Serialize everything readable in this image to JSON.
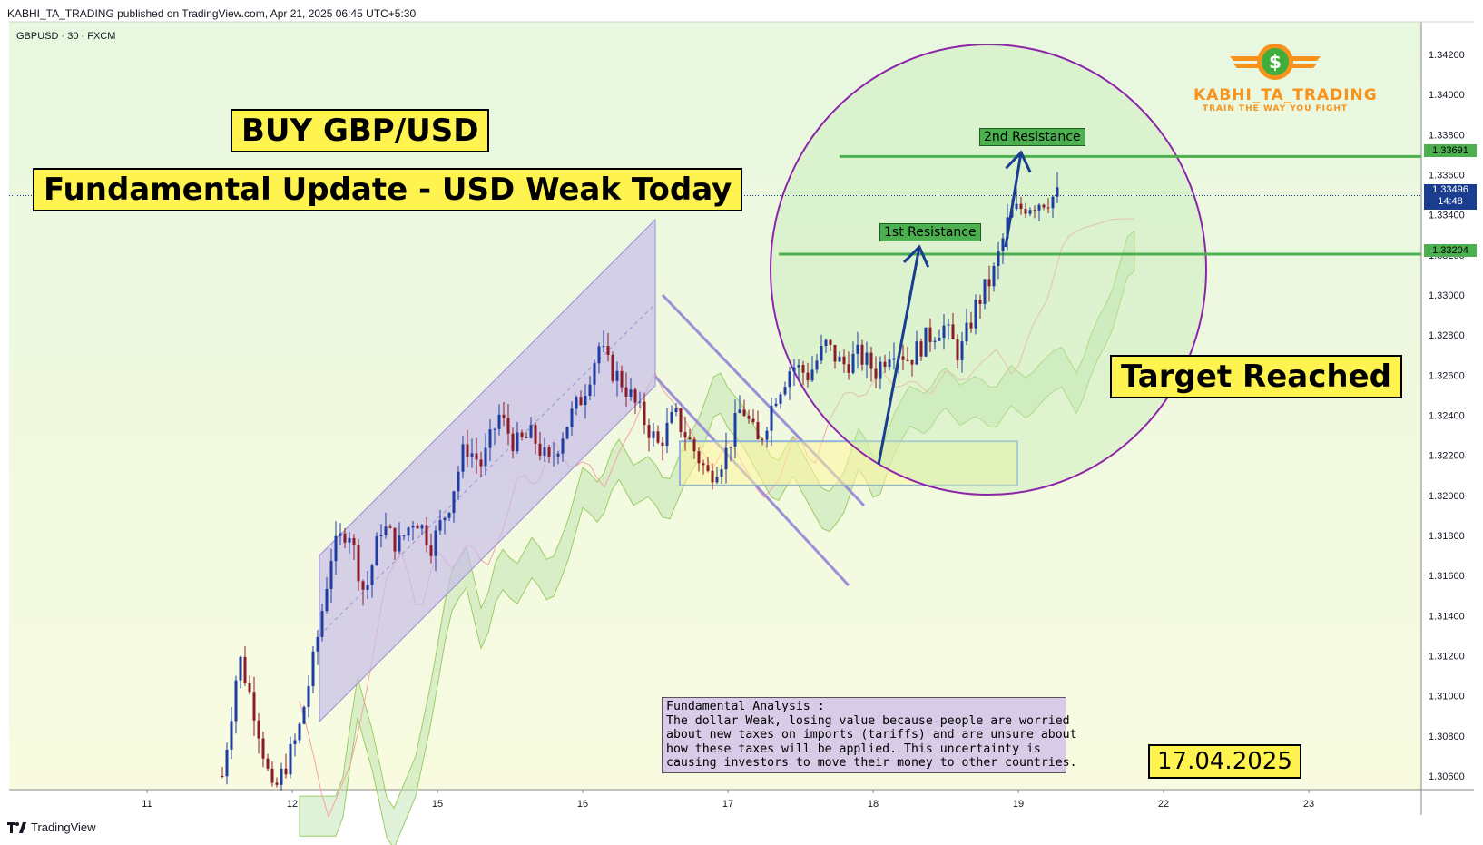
{
  "header": {
    "published": "KABHI_TA_TRADING published on TradingView.com, Apr 21, 2025 06:45 UTC+5:30"
  },
  "symbol_line": "GBPUSD · 30 · FXCM",
  "labels": {
    "buy": "BUY GBP/USD",
    "fundamental": "Fundamental Update -  USD Weak Today",
    "target": "Target Reached",
    "date": "17.04.2025",
    "res1": "1st Resistance",
    "res2": "2nd Resistance"
  },
  "note": {
    "lines": [
      "Fundamental Analysis :",
      "The dollar Weak, losing value because people are worried",
      "about new taxes on imports (tariffs) and are unsure about",
      "how these taxes will be applied. This uncertainty is",
      "causing investors to move their money to other countries."
    ]
  },
  "logo": {
    "name": "KABHI_TA_TRADING",
    "tagline": "TRAIN THE WAY YOU FIGHT",
    "symbol": "$"
  },
  "price_tags": {
    "res2": "1.33691",
    "current": "1.33496",
    "countdown": "14:48",
    "res1": "1.33204"
  },
  "footer": {
    "brand": "TradingView"
  },
  "colors": {
    "background_top": "#e8f7e0",
    "background_bottom": "#f8fbe0",
    "up_candle": "#1f3ca0",
    "down_candle": "#8b1a2a",
    "resistance": "#4caf50",
    "channel": "#9c8fd6",
    "circle": "#8e24aa",
    "arrow": "#1a3d8f",
    "zone": "#fff59d"
  },
  "chart_data": {
    "type": "candlestick",
    "symbol": "GBPUSD",
    "timeframe": "30",
    "x_ticks": [
      "11",
      "12",
      "15",
      "16",
      "17",
      "18",
      "19",
      "22",
      "23"
    ],
    "y_ticks": [
      "1.34200",
      "1.34000",
      "1.33800",
      "1.33600",
      "1.33400",
      "1.33200",
      "1.33000",
      "1.32800",
      "1.32600",
      "1.32400",
      "1.32200",
      "1.32000",
      "1.31800",
      "1.31600",
      "1.31400",
      "1.31200",
      "1.31000",
      "1.30800",
      "1.30600"
    ],
    "ylim": [
      1.3048,
      1.3428
    ],
    "resistance_levels": [
      1.33691,
      1.33204
    ],
    "last_price": 1.33496,
    "demand_zone": [
      1.3205,
      1.3227
    ],
    "price_path": [
      [
        0.0,
        1.306
      ],
      [
        0.02,
        1.312
      ],
      [
        0.04,
        1.309
      ],
      [
        0.06,
        1.305
      ],
      [
        0.09,
        1.308
      ],
      [
        0.11,
        1.312
      ],
      [
        0.13,
        1.317
      ],
      [
        0.15,
        1.3185
      ],
      [
        0.17,
        1.315
      ],
      [
        0.19,
        1.3185
      ],
      [
        0.21,
        1.3175
      ],
      [
        0.23,
        1.319
      ],
      [
        0.25,
        1.3175
      ],
      [
        0.27,
        1.3195
      ],
      [
        0.29,
        1.3225
      ],
      [
        0.31,
        1.3215
      ],
      [
        0.33,
        1.324
      ],
      [
        0.35,
        1.3225
      ],
      [
        0.37,
        1.323
      ],
      [
        0.39,
        1.3215
      ],
      [
        0.41,
        1.3235
      ],
      [
        0.43,
        1.325
      ],
      [
        0.45,
        1.3275
      ],
      [
        0.46,
        1.3265
      ],
      [
        0.48,
        1.3255
      ],
      [
        0.5,
        1.324
      ],
      [
        0.52,
        1.3225
      ],
      [
        0.54,
        1.324
      ],
      [
        0.56,
        1.3225
      ],
      [
        0.58,
        1.321
      ],
      [
        0.6,
        1.322
      ],
      [
        0.62,
        1.3245
      ],
      [
        0.64,
        1.3225
      ],
      [
        0.66,
        1.325
      ],
      [
        0.68,
        1.3265
      ],
      [
        0.7,
        1.326
      ],
      [
        0.72,
        1.3275
      ],
      [
        0.74,
        1.3265
      ],
      [
        0.76,
        1.327
      ],
      [
        0.78,
        1.3262
      ],
      [
        0.8,
        1.3275
      ],
      [
        0.82,
        1.3268
      ],
      [
        0.84,
        1.3278
      ],
      [
        0.86,
        1.3285
      ],
      [
        0.88,
        1.327
      ],
      [
        0.9,
        1.3295
      ],
      [
        0.92,
        1.331
      ],
      [
        0.94,
        1.334
      ],
      [
        0.96,
        1.3345
      ],
      [
        1.0,
        1.335
      ]
    ]
  }
}
